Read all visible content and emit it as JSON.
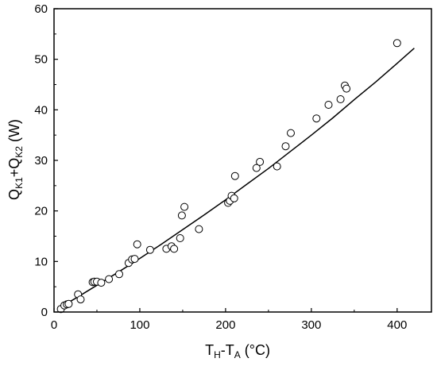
{
  "chart_data": {
    "type": "scatter",
    "xlabel": {
      "main": "T",
      "sub1": "H",
      "mid": "-T",
      "sub2": "A",
      "tail": " (°C)"
    },
    "ylabel": {
      "q1": "Q",
      "sub1": "K1",
      "plus": "+Q",
      "sub2": "K2",
      "tail": " (W)"
    },
    "xlim": [
      0,
      440
    ],
    "ylim": [
      0,
      60
    ],
    "xticks": [
      0,
      100,
      200,
      300,
      400
    ],
    "yticks": [
      0,
      10,
      20,
      30,
      40,
      50,
      60
    ],
    "grid": false,
    "marker": "open-circle",
    "points": [
      [
        8,
        0.6
      ],
      [
        12,
        1.3
      ],
      [
        15,
        1.5
      ],
      [
        17,
        1.6
      ],
      [
        28,
        3.5
      ],
      [
        31,
        2.5
      ],
      [
        45,
        5.9
      ],
      [
        47,
        6.0
      ],
      [
        50,
        6.0
      ],
      [
        55,
        5.8
      ],
      [
        64,
        6.5
      ],
      [
        76,
        7.5
      ],
      [
        87,
        9.7
      ],
      [
        91,
        10.4
      ],
      [
        94,
        10.5
      ],
      [
        97,
        13.4
      ],
      [
        112,
        12.3
      ],
      [
        131,
        12.5
      ],
      [
        137,
        13.0
      ],
      [
        140,
        12.5
      ],
      [
        147,
        14.6
      ],
      [
        149,
        19.1
      ],
      [
        152,
        20.8
      ],
      [
        169,
        16.4
      ],
      [
        203,
        21.6
      ],
      [
        205,
        22.0
      ],
      [
        207,
        23.0
      ],
      [
        210,
        22.5
      ],
      [
        211,
        26.9
      ],
      [
        236,
        28.5
      ],
      [
        240,
        29.7
      ],
      [
        260,
        28.8
      ],
      [
        270,
        32.8
      ],
      [
        276,
        35.4
      ],
      [
        306,
        38.3
      ],
      [
        320,
        41.0
      ],
      [
        334,
        42.1
      ],
      [
        339,
        44.8
      ],
      [
        341,
        44.2
      ],
      [
        400,
        53.2
      ]
    ],
    "fit": [
      [
        5,
        0.75
      ],
      [
        25,
        2.7
      ],
      [
        50,
        5.3
      ],
      [
        75,
        7.9
      ],
      [
        100,
        10.6
      ],
      [
        125,
        13.4
      ],
      [
        150,
        16.3
      ],
      [
        175,
        19.2
      ],
      [
        200,
        22.2
      ],
      [
        225,
        25.3
      ],
      [
        250,
        28.4
      ],
      [
        275,
        31.7
      ],
      [
        300,
        35.0
      ],
      [
        325,
        38.4
      ],
      [
        350,
        42.0
      ],
      [
        375,
        45.5
      ],
      [
        400,
        49.2
      ],
      [
        420,
        52.2
      ]
    ],
    "colors": {
      "axis": "#000000",
      "marker_stroke": "#000000",
      "marker_fill": "#ffffff",
      "line": "#000000"
    }
  }
}
